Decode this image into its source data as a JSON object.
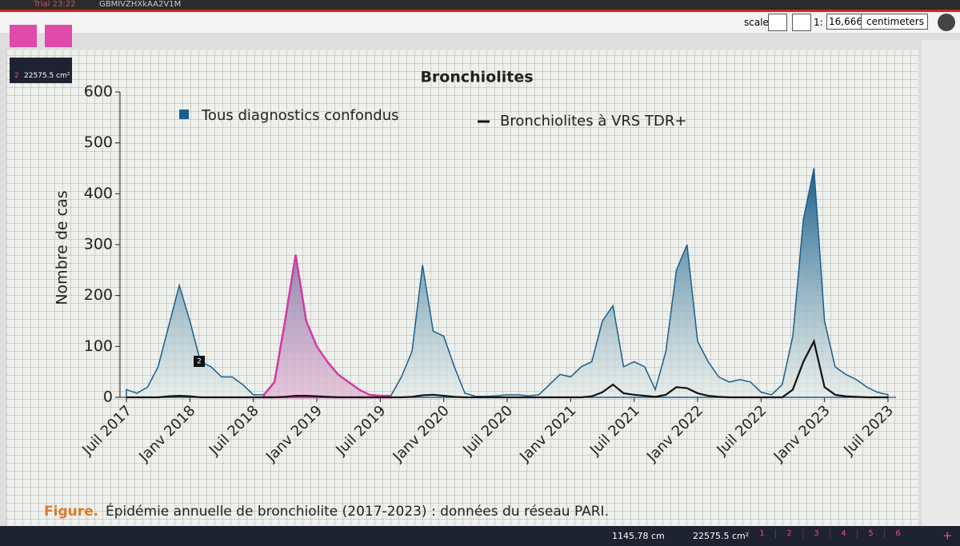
{
  "app": {
    "trial": "Trial 23:22",
    "file": "GBMIVZHXkAA2V1M",
    "scale_label": "scale",
    "scale_prefix": "1:",
    "scale_value": "16,666",
    "unit": "centimeters",
    "panel_item": "2",
    "panel_area": "22575.5 cm²",
    "marker": "2",
    "status_length": "1145.78 cm",
    "status_area": "22575.5 cm²",
    "tabs": [
      "1",
      "2",
      "3",
      "4",
      "5",
      "6"
    ],
    "add_tab": "+"
  },
  "chart_data": {
    "type": "area",
    "title": "Bronchiolites",
    "y_label": "Nombre de cas",
    "x": [
      "2017-07",
      "2017-08",
      "2017-09",
      "2017-10",
      "2017-11",
      "2017-12",
      "2018-01",
      "2018-02",
      "2018-03",
      "2018-04",
      "2018-05",
      "2018-06",
      "2018-07",
      "2018-08",
      "2018-09",
      "2018-10",
      "2018-11",
      "2018-12",
      "2019-01",
      "2019-02",
      "2019-03",
      "2019-04",
      "2019-05",
      "2019-06",
      "2019-07",
      "2019-08",
      "2019-09",
      "2019-10",
      "2019-11",
      "2019-12",
      "2020-01",
      "2020-02",
      "2020-03",
      "2020-04",
      "2020-05",
      "2020-06",
      "2020-07",
      "2020-08",
      "2020-09",
      "2020-10",
      "2020-11",
      "2020-12",
      "2021-01",
      "2021-02",
      "2021-03",
      "2021-04",
      "2021-05",
      "2021-06",
      "2021-07",
      "2021-08",
      "2021-09",
      "2021-10",
      "2021-11",
      "2021-12",
      "2022-01",
      "2022-02",
      "2022-03",
      "2022-04",
      "2022-05",
      "2022-06",
      "2022-07",
      "2022-08",
      "2022-09",
      "2022-10",
      "2022-11",
      "2022-12",
      "2023-01",
      "2023-02",
      "2023-03",
      "2023-04",
      "2023-05",
      "2023-06",
      "2023-07"
    ],
    "series": [
      {
        "name": "Tous diagnostics confondus",
        "color": "#1b5f8c",
        "values": [
          15,
          8,
          20,
          60,
          140,
          220,
          150,
          70,
          60,
          40,
          40,
          25,
          5,
          5,
          30,
          150,
          280,
          150,
          100,
          70,
          45,
          30,
          15,
          5,
          3,
          3,
          40,
          90,
          260,
          130,
          120,
          60,
          8,
          2,
          2,
          3,
          5,
          5,
          3,
          5,
          25,
          45,
          40,
          60,
          70,
          150,
          180,
          60,
          70,
          60,
          15,
          90,
          250,
          300,
          110,
          70,
          40,
          30,
          35,
          30,
          10,
          5,
          25,
          120,
          350,
          450,
          150,
          60,
          45,
          35,
          20,
          10,
          5
        ]
      },
      {
        "name": "Bronchiolites à VRS TDR+",
        "color": "#111111",
        "values": [
          0,
          0,
          0,
          0,
          2,
          3,
          2,
          0,
          0,
          0,
          0,
          0,
          0,
          0,
          0,
          1,
          3,
          3,
          2,
          1,
          0,
          0,
          0,
          0,
          0,
          0,
          0,
          1,
          4,
          5,
          3,
          1,
          0,
          0,
          0,
          0,
          0,
          0,
          0,
          0,
          0,
          0,
          0,
          0,
          2,
          10,
          25,
          8,
          5,
          3,
          1,
          5,
          20,
          18,
          8,
          3,
          1,
          0,
          0,
          0,
          0,
          0,
          0,
          15,
          70,
          110,
          20,
          5,
          2,
          1,
          0,
          0,
          0
        ]
      }
    ],
    "ylim": [
      0,
      600
    ],
    "yticks": [
      0,
      100,
      200,
      300,
      400,
      500,
      600
    ],
    "xticks": [
      {
        "value": "2017-07",
        "label": "Juil 2017"
      },
      {
        "value": "2018-01",
        "label": "Janv 2018"
      },
      {
        "value": "2018-07",
        "label": "Juil 2018"
      },
      {
        "value": "2019-01",
        "label": "Janv 2019"
      },
      {
        "value": "2019-07",
        "label": "Juil 2019"
      },
      {
        "value": "2020-01",
        "label": "Janv 2020"
      },
      {
        "value": "2020-07",
        "label": "Juil 2020"
      },
      {
        "value": "2021-01",
        "label": "Janv 2021"
      },
      {
        "value": "2021-07",
        "label": "Juil 2021"
      },
      {
        "value": "2022-01",
        "label": "Janv 2022"
      },
      {
        "value": "2022-07",
        "label": "Juil 2022"
      },
      {
        "value": "2023-01",
        "label": "Janv 2023"
      },
      {
        "value": "2023-07",
        "label": "Juil 2023"
      }
    ]
  },
  "caption": {
    "label": "Figure.",
    "text": "Épidémie annuelle de bronchiolite (2017-2023) : données du réseau PARI."
  }
}
